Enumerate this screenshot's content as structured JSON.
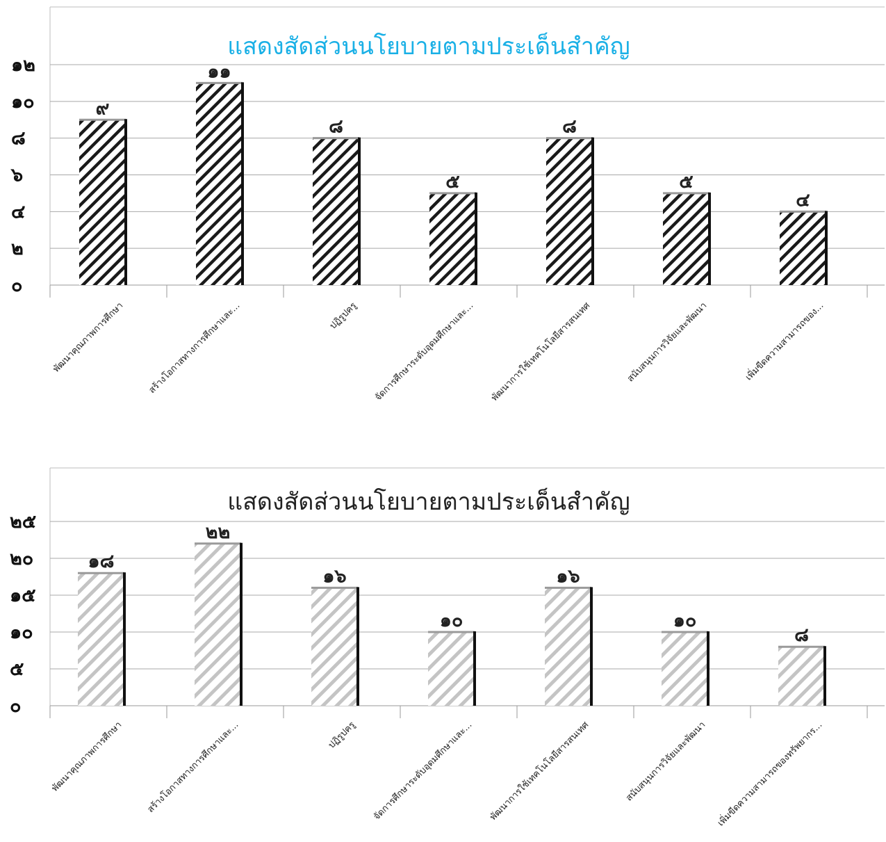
{
  "charts": [
    {
      "title": "แสดงสัดส่วนนโยบายตามประเด็นสำคัญ",
      "title_color": "#1ab0e6",
      "hatch_style": "black",
      "y_tick_labels": [
        "๐",
        "๒",
        "๔",
        "๖",
        "๘",
        "๑๐",
        "๑๒"
      ],
      "data_labels": [
        "๙",
        "๑๑",
        "๘",
        "๕",
        "๘",
        "๕",
        "๔"
      ],
      "category_labels": [
        "พัฒนาคุณภาพการศึกษา",
        "สร้างโอกาสทางการศึกษาและ...",
        "ปฏิรูปครู",
        "จัดการศึกษาระดับอุดมศึกษาและ...",
        "พัฒนาการใช้เทคโนโลยีสารสนเทศ",
        "สนับสนุนการวิจัยและพัฒนา",
        "เพิ่มขีดความสามารถของ..."
      ]
    },
    {
      "title": "แสดงสัดส่วนนโยบายตามประเด็นสำคัญ",
      "title_color": "#222222",
      "hatch_style": "gray",
      "y_tick_labels": [
        "๐",
        "๕",
        "๑๐",
        "๑๕",
        "๒๐",
        "๒๕"
      ],
      "data_labels": [
        "๑๘",
        "๒๒",
        "๑๖",
        "๑๐",
        "๑๖",
        "๑๐",
        "๘"
      ],
      "category_labels": [
        "พัฒนาคุณภาพการศึกษา",
        "สร้างโอกาสทางการศึกษาและ...",
        "ปฏิรูปครู",
        "จัดการศึกษาระดับอุดมศึกษาและ...",
        "พัฒนาการใช้เทคโนโลยีสารสนเทศ",
        "สนับสนุนการวิจัยและพัฒนา",
        "เพิ่มขีดความสามารถของทรัพยากร..."
      ]
    }
  ],
  "chart_data": [
    {
      "type": "bar",
      "title": "แสดงสัดส่วนนโยบายตามประเด็นสำคัญ",
      "categories": [
        "พัฒนาคุณภาพการศึกษา",
        "สร้างโอกาสทางการศึกษาและ...",
        "ปฏิรูปครู",
        "จัดการศึกษาระดับอุดมศึกษาและ...",
        "พัฒนาการใช้เทคโนโลยีสารสนเทศ",
        "สนับสนุนการวิจัยและพัฒนา",
        "เพิ่มขีดความสามารถของ..."
      ],
      "values": [
        9,
        11,
        8,
        5,
        8,
        5,
        4
      ],
      "yticks": [
        0,
        2,
        4,
        6,
        8,
        10,
        12
      ],
      "ylim": [
        0,
        12
      ],
      "grid": true,
      "legend": false
    },
    {
      "type": "bar",
      "title": "แสดงสัดส่วนนโยบายตามประเด็นสำคัญ",
      "categories": [
        "พัฒนาคุณภาพการศึกษา",
        "สร้างโอกาสทางการศึกษาและ...",
        "ปฏิรูปครู",
        "จัดการศึกษาระดับอุดมศึกษาและ...",
        "พัฒนาการใช้เทคโนโลยีสารสนเทศ",
        "สนับสนุนการวิจัยและพัฒนา",
        "เพิ่มขีดความสามารถของทรัพยากร..."
      ],
      "values": [
        18,
        22,
        16,
        10,
        16,
        10,
        8
      ],
      "yticks": [
        0,
        5,
        10,
        15,
        20,
        25
      ],
      "ylim": [
        0,
        25
      ],
      "grid": true,
      "legend": false
    }
  ]
}
